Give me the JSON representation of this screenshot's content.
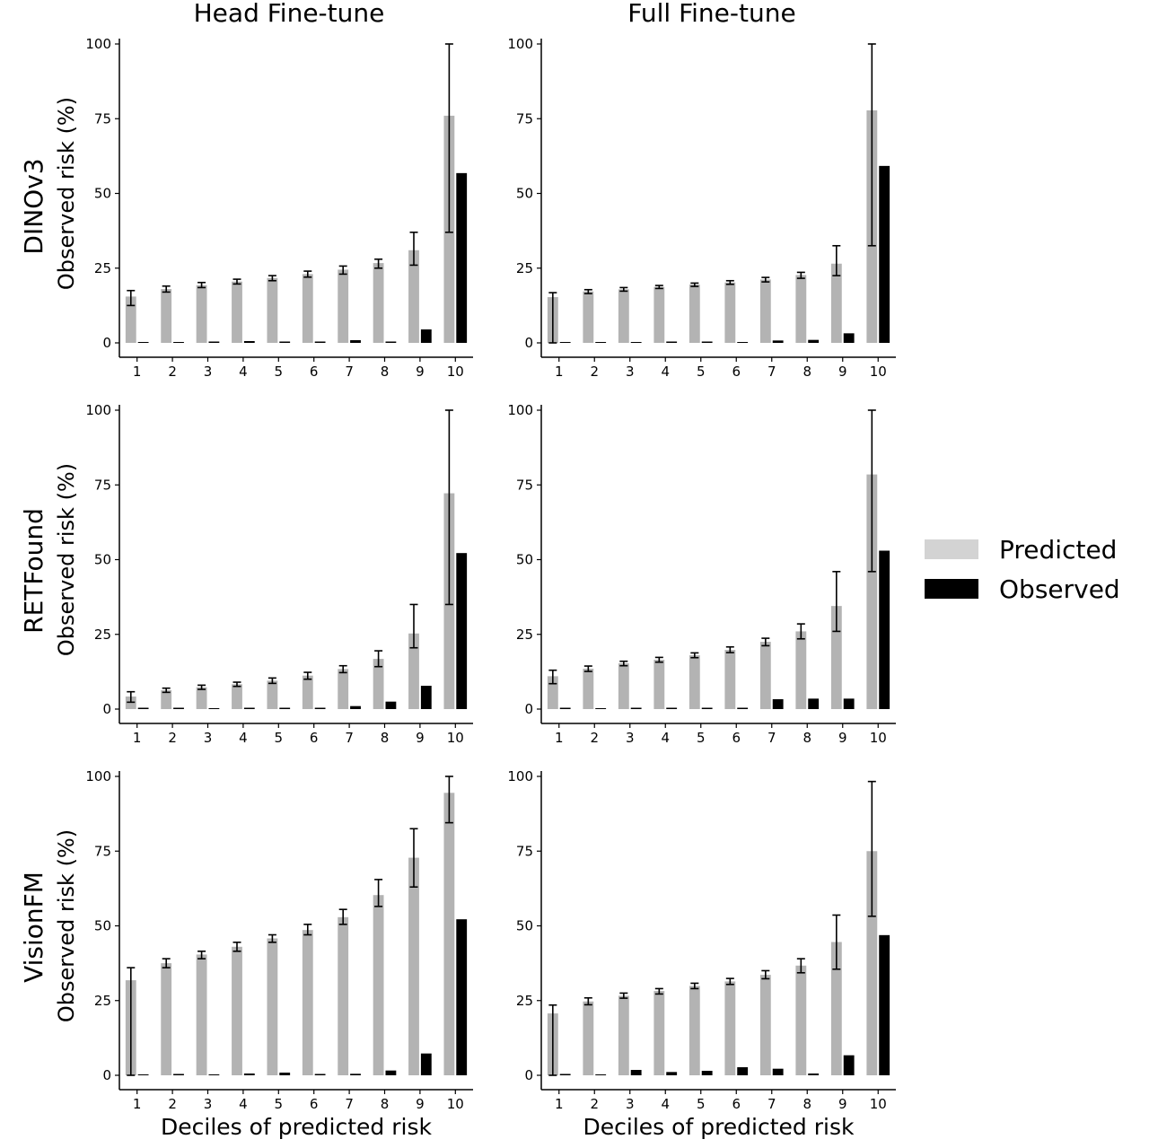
{
  "columns": [
    "Head Fine-tune",
    "Full Fine-tune"
  ],
  "rows": [
    "DINOv3",
    "RETFound",
    "VisionFM"
  ],
  "legend": {
    "predicted": "Predicted",
    "observed": "Observed"
  },
  "colors": {
    "predicted": "#b3b3b3",
    "observed": "#000000",
    "legend_predicted": "#d3d3d3"
  },
  "chart_data": [
    {
      "type": "bar",
      "row": "DINOv3",
      "column": "Head Fine-tune",
      "xlabel": "",
      "ylabel": "Observed risk (%)",
      "categories": [
        "1",
        "2",
        "3",
        "4",
        "5",
        "6",
        "7",
        "8",
        "9",
        "10"
      ],
      "ylim": [
        0,
        100
      ],
      "yticks": [
        0,
        25,
        50,
        75,
        100
      ],
      "series": [
        {
          "name": "Predicted",
          "values": [
            15.5,
            18,
            19.3,
            20.5,
            21.7,
            23,
            24.5,
            26.7,
            31,
            76
          ],
          "ci_low": [
            12.5,
            17,
            18.5,
            19.7,
            20.8,
            22,
            23,
            25,
            26,
            37
          ],
          "ci_high": [
            17.5,
            19,
            20.2,
            21.3,
            22.5,
            24,
            25.7,
            28,
            37,
            100
          ]
        },
        {
          "name": "Observed",
          "values": [
            0,
            0,
            0.4,
            0.6,
            0.3,
            0.4,
            0.9,
            0.3,
            4.5,
            56.8
          ]
        }
      ]
    },
    {
      "type": "bar",
      "row": "DINOv3",
      "column": "Full Fine-tune",
      "xlabel": "",
      "ylabel": "",
      "categories": [
        "1",
        "2",
        "3",
        "4",
        "5",
        "6",
        "7",
        "8",
        "9",
        "10"
      ],
      "ylim": [
        0,
        100
      ],
      "yticks": [
        0,
        25,
        50,
        75,
        100
      ],
      "series": [
        {
          "name": "Predicted",
          "values": [
            15.3,
            17.2,
            17.9,
            18.7,
            19.5,
            20.2,
            21.2,
            22.7,
            26.5,
            77.8
          ],
          "ci_low": [
            0,
            16.5,
            17.3,
            18.2,
            18.9,
            19.6,
            20.4,
            21.6,
            22.5,
            32.5
          ],
          "ci_high": [
            16.8,
            17.8,
            18.5,
            19.2,
            20,
            20.8,
            21.9,
            23.6,
            32.5,
            100
          ]
        },
        {
          "name": "Observed",
          "values": [
            0,
            0,
            0,
            0.3,
            0.3,
            0,
            0.8,
            1,
            3.2,
            59.2
          ]
        }
      ]
    },
    {
      "type": "bar",
      "row": "RETFound",
      "column": "Head Fine-tune",
      "xlabel": "",
      "ylabel": "Observed risk (%)",
      "categories": [
        "1",
        "2",
        "3",
        "4",
        "5",
        "6",
        "7",
        "8",
        "9",
        "10"
      ],
      "ylim": [
        0,
        100
      ],
      "yticks": [
        0,
        25,
        50,
        75,
        100
      ],
      "series": [
        {
          "name": "Predicted",
          "values": [
            4.2,
            6.3,
            7.3,
            8.3,
            9.5,
            11.2,
            13.4,
            16.8,
            25.3,
            72.2
          ],
          "ci_low": [
            2.3,
            5.6,
            6.6,
            7.6,
            8.6,
            10,
            12.2,
            14.2,
            20.5,
            35
          ],
          "ci_high": [
            5.8,
            7,
            8,
            9,
            10.4,
            12.3,
            14.5,
            19.5,
            35,
            100
          ]
        },
        {
          "name": "Observed",
          "values": [
            0.3,
            0.3,
            0,
            0.3,
            0.4,
            0.3,
            1,
            2.5,
            7.8,
            52.2
          ]
        }
      ]
    },
    {
      "type": "bar",
      "row": "RETFound",
      "column": "Full Fine-tune",
      "xlabel": "",
      "ylabel": "",
      "categories": [
        "1",
        "2",
        "3",
        "4",
        "5",
        "6",
        "7",
        "8",
        "9",
        "10"
      ],
      "ylim": [
        0,
        100
      ],
      "yticks": [
        0,
        25,
        50,
        75,
        100
      ],
      "series": [
        {
          "name": "Predicted",
          "values": [
            11,
            13.5,
            15.3,
            16.5,
            18,
            19.8,
            22.5,
            26,
            34.5,
            78.5
          ],
          "ci_low": [
            8.5,
            12.6,
            14.5,
            15.7,
            17.2,
            18.9,
            21.2,
            23.5,
            26,
            46
          ],
          "ci_high": [
            13,
            14.4,
            16,
            17.3,
            18.8,
            20.8,
            23.7,
            28.5,
            46,
            100
          ]
        },
        {
          "name": "Observed",
          "values": [
            0.3,
            0,
            0.3,
            0.3,
            0.3,
            0.3,
            3.3,
            3.5,
            3.5,
            53
          ]
        }
      ]
    },
    {
      "type": "bar",
      "row": "VisionFM",
      "column": "Head Fine-tune",
      "xlabel": "Deciles of predicted risk",
      "ylabel": "Observed risk (%)",
      "categories": [
        "1",
        "2",
        "3",
        "4",
        "5",
        "6",
        "7",
        "8",
        "9",
        "10"
      ],
      "ylim": [
        0,
        100
      ],
      "yticks": [
        0,
        25,
        50,
        75,
        100
      ],
      "series": [
        {
          "name": "Predicted",
          "values": [
            31.8,
            37.5,
            40.4,
            43,
            45.8,
            48.6,
            52.9,
            60.3,
            72.8,
            94.5
          ],
          "ci_low": [
            0,
            36,
            39,
            41.5,
            44.5,
            47,
            50.5,
            56.5,
            63,
            84.5
          ],
          "ci_high": [
            36,
            39,
            41.5,
            44.5,
            47,
            50.5,
            55.5,
            65.5,
            82.5,
            100
          ]
        },
        {
          "name": "Observed",
          "values": [
            0,
            0.4,
            0,
            0.6,
            0.9,
            0.4,
            0.5,
            1.6,
            7.3,
            52.2
          ]
        }
      ]
    },
    {
      "type": "bar",
      "row": "VisionFM",
      "column": "Full Fine-tune",
      "xlabel": "Deciles of predicted risk",
      "ylabel": "",
      "categories": [
        "1",
        "2",
        "3",
        "4",
        "5",
        "6",
        "7",
        "8",
        "9",
        "10"
      ],
      "ylim": [
        0,
        100
      ],
      "yticks": [
        0,
        25,
        50,
        75,
        100
      ],
      "series": [
        {
          "name": "Predicted",
          "values": [
            20.7,
            24.7,
            26.6,
            28.2,
            29.9,
            31.4,
            33.6,
            36.7,
            44.6,
            75
          ],
          "ci_low": [
            0,
            23.6,
            25.8,
            27.2,
            29,
            30.4,
            32.3,
            34.3,
            35.5,
            53.2
          ],
          "ci_high": [
            23.5,
            25.9,
            27.5,
            29,
            30.8,
            32.4,
            35,
            39,
            53.6,
            98.3
          ]
        },
        {
          "name": "Observed",
          "values": [
            0.4,
            0,
            1.8,
            1.1,
            1.5,
            2.7,
            2.2,
            0.6,
            6.7,
            46.9
          ]
        }
      ]
    }
  ]
}
